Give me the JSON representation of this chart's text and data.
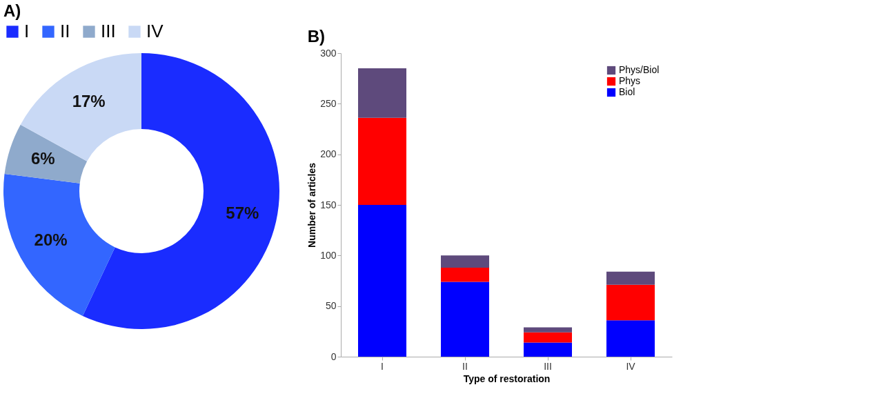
{
  "chart_data": [
    {
      "type": "donut",
      "title": "A)",
      "categories": [
        "I",
        "II",
        "III",
        "IV"
      ],
      "values": [
        57,
        20,
        6,
        17
      ],
      "colors": [
        "#1a2cff",
        "#3366ff",
        "#8faacc",
        "#c9d9f5"
      ],
      "value_labels": [
        "57%",
        "20%",
        "6%",
        "17%"
      ],
      "legend": "top"
    },
    {
      "type": "bar",
      "title": "B)",
      "categories": [
        "I",
        "II",
        "III",
        "IV"
      ],
      "stacked": true,
      "xlabel": "Type of restoration",
      "ylabel": "Number of articles",
      "ylim": [
        0,
        300
      ],
      "yticks": [
        0,
        50,
        100,
        150,
        200,
        250,
        300
      ],
      "grid": false,
      "legend": "top right",
      "series": [
        {
          "name": "Biol",
          "color": "#0000ff",
          "values": [
            150,
            74,
            14,
            36
          ]
        },
        {
          "name": "Phys",
          "color": "#ff0000",
          "values": [
            86,
            14,
            10,
            35
          ]
        },
        {
          "name": "Phys/Biol",
          "color": "#5e4a7c",
          "values": [
            49,
            12,
            5,
            13
          ]
        }
      ]
    }
  ]
}
